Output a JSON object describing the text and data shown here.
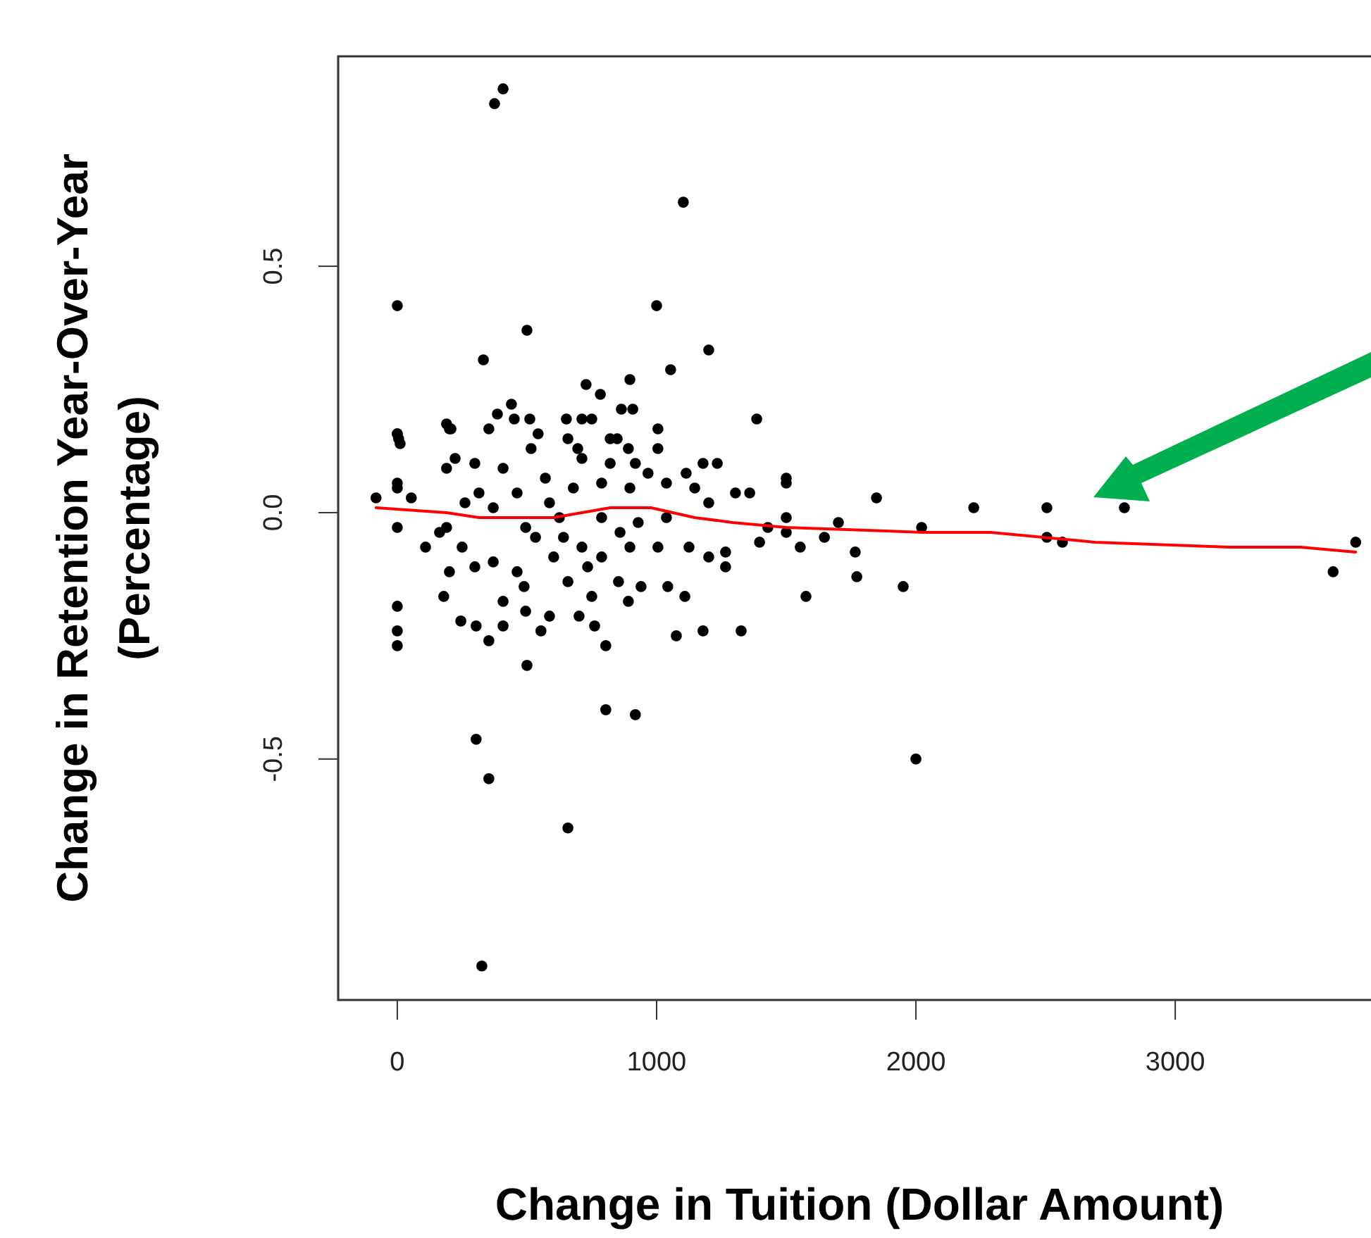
{
  "chart_data": {
    "type": "scatter",
    "xlabel": "Change in Tuition (Dollar Amount)",
    "ylabel": "Change in Retention Year-Over-Year\n(Percentage)",
    "xlim": [
      -228,
      3755
    ],
    "ylim": [
      -0.989,
      0.926
    ],
    "xticks": [
      0,
      1000,
      2000,
      3000
    ],
    "yticks": [
      {
        "value": -0.5,
        "label": "-0.5"
      },
      {
        "value": 0,
        "label": "0.0"
      },
      {
        "value": 0.5,
        "label": "0.5"
      }
    ],
    "grid": false,
    "marker": "circle",
    "series": [
      {
        "color": "#000000",
        "x": [
          375,
          408,
          1103,
          0,
          1000,
          500,
          332,
          1201,
          1054,
          897,
          728,
          783,
          864,
          908,
          1386,
          440,
          201,
          0,
          11,
          386,
          451,
          511,
          652,
          712,
          750,
          1005,
          848,
          658,
          696,
          1179,
          1234,
          1500,
          -82,
          0,
          0,
          54,
          0,
          109,
          201,
          179,
          0,
          0,
          0,
          245,
          304,
          353,
          408,
          408,
          495,
          489,
          554,
          587,
          658,
          701,
          761,
          804,
          750,
          853,
          891,
          940,
          1043,
          1109,
          1076,
          1179,
          1326,
          1125,
          1201,
          1266,
          1266,
          1397,
          1500,
          1500,
          1500,
          1429,
          1359,
          1304,
          1201,
          1005,
          821,
          891,
          821,
          918,
          712,
          516,
          543,
          353,
          190,
          207,
          0,
          5,
          223,
          299,
          190,
          408,
          967,
          1114,
          190,
          163,
          250,
          299,
          370,
          462,
          370,
          315,
          261,
          495,
          587,
          641,
          712,
          788,
          897,
          1005,
          929,
          1038,
          1147,
          1038,
          897,
          788,
          679,
          571,
          462,
          533,
          603,
          734,
          859,
          788,
          625,
          500,
          804,
          918,
          304,
          353,
          658,
          326,
          1848,
          2223,
          2505,
          2804,
          2505,
          2565,
          2022,
          1701,
          1647,
          1554,
          1766,
          1772,
          1951,
          1576,
          2000,
          3609,
          3696
        ],
        "values": [
          0.83,
          0.86,
          0.63,
          0.42,
          0.42,
          0.37,
          0.31,
          0.33,
          0.29,
          0.27,
          0.26,
          0.24,
          0.21,
          0.21,
          0.19,
          0.22,
          0.17,
          0.16,
          0.14,
          0.2,
          0.19,
          0.19,
          0.19,
          0.19,
          0.19,
          0.17,
          0.15,
          0.15,
          0.13,
          0.1,
          0.1,
          0.07,
          0.03,
          0.06,
          0.05,
          0.03,
          -0.03,
          -0.07,
          -0.12,
          -0.17,
          -0.19,
          -0.24,
          -0.27,
          -0.22,
          -0.23,
          -0.26,
          -0.23,
          -0.18,
          -0.2,
          -0.15,
          -0.24,
          -0.21,
          -0.14,
          -0.21,
          -0.23,
          -0.27,
          -0.17,
          -0.14,
          -0.18,
          -0.15,
          -0.15,
          -0.17,
          -0.25,
          -0.24,
          -0.24,
          -0.07,
          -0.09,
          -0.11,
          -0.08,
          -0.06,
          0.06,
          -0.01,
          -0.04,
          -0.03,
          0.04,
          0.04,
          0.02,
          0.13,
          0.15,
          0.13,
          0.1,
          0.1,
          0.11,
          0.13,
          0.16,
          0.17,
          0.18,
          0.17,
          0.16,
          0.15,
          0.11,
          0.1,
          0.09,
          0.09,
          0.08,
          0.08,
          -0.03,
          -0.04,
          -0.07,
          -0.11,
          -0.1,
          -0.12,
          0.01,
          0.04,
          0.02,
          -0.03,
          0.02,
          -0.05,
          -0.07,
          -0.09,
          -0.07,
          -0.07,
          -0.02,
          -0.01,
          0.05,
          0.06,
          0.05,
          0.06,
          0.05,
          0.07,
          0.04,
          -0.05,
          -0.09,
          -0.11,
          -0.04,
          -0.01,
          -0.01,
          -0.31,
          -0.4,
          -0.41,
          -0.46,
          -0.54,
          -0.64,
          -0.92,
          0.03,
          0.01,
          0.01,
          0.01,
          -0.05,
          -0.06,
          -0.03,
          -0.02,
          -0.05,
          -0.07,
          -0.08,
          -0.13,
          -0.15,
          -0.17,
          -0.5,
          -0.12,
          -0.06
        ]
      },
      {
        "type": "line",
        "color": "#ff0000",
        "marker": "none",
        "x": [
          -82,
          190,
          315,
          603,
          712,
          821,
          978,
          1147,
          1293,
          1500,
          2027,
          2288,
          2690,
          3212,
          3484,
          3696
        ],
        "values": [
          0.01,
          0,
          -0.01,
          -0.01,
          0,
          0.01,
          0.01,
          -0.01,
          -0.02,
          -0.03,
          -0.04,
          -0.04,
          -0.06,
          -0.07,
          -0.07,
          -0.08
        ]
      }
    ]
  }
}
